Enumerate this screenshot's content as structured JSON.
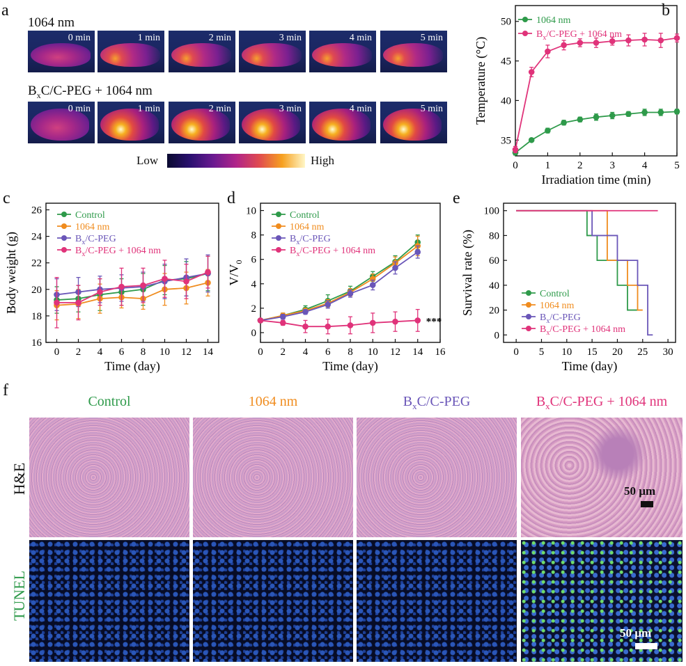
{
  "panel_labels": {
    "a": "a",
    "b": "b",
    "c": "c",
    "d": "d",
    "e": "e",
    "f": "f"
  },
  "colors": {
    "green": "#2e9a4a",
    "orange": "#f08c1e",
    "purple": "#6a56b8",
    "pink": "#e0337a"
  },
  "panel_a": {
    "row1_label": "1064 nm",
    "row2_label_prefix": "B",
    "row2_label_sub": "x",
    "row2_label_suffix": "C/C-PEG + 1064 nm",
    "times": [
      "0 min",
      "1 min",
      "2 min",
      "3 min",
      "4 min",
      "5 min"
    ],
    "colorbar_low": "Low",
    "colorbar_high": "High"
  },
  "panel_f": {
    "columns": [
      {
        "prefix": "Control",
        "sub": "",
        "suffix": ""
      },
      {
        "prefix": "1064 nm",
        "sub": "",
        "suffix": ""
      },
      {
        "prefix": "B",
        "sub": "x",
        "suffix": "C/C-PEG"
      },
      {
        "prefix": "B",
        "sub": "x",
        "suffix": "C/C-PEG + 1064 nm"
      }
    ],
    "row_he": "H&E",
    "row_tunel": "TUNEL",
    "scale_bar": "50 µm"
  },
  "chart_data": [
    {
      "panel": "b",
      "type": "line",
      "xlabel": "Irradiation time (min)",
      "ylabel": "Temperature (°C)",
      "xlim": [
        0,
        5
      ],
      "ylim": [
        33,
        52
      ],
      "xticks": [
        "0",
        "1",
        "2",
        "3",
        "4",
        "5"
      ],
      "yticks": [
        "35",
        "40",
        "45",
        "50"
      ],
      "x": [
        0,
        0.5,
        1,
        1.5,
        2,
        2.5,
        3,
        3.5,
        4,
        4.5,
        5
      ],
      "series": [
        {
          "name": "1064 nm",
          "color": "#2e9a4a",
          "values": [
            33.4,
            35.0,
            36.2,
            37.2,
            37.6,
            37.9,
            38.1,
            38.3,
            38.5,
            38.5,
            38.6
          ],
          "err": [
            0.3,
            0.2,
            0.3,
            0.3,
            0.3,
            0.4,
            0.4,
            0.3,
            0.4,
            0.4,
            0.3
          ]
        },
        {
          "name": "BxC/C-PEG + 1064 nm",
          "color": "#e0337a",
          "values": [
            33.8,
            43.6,
            46.2,
            47.0,
            47.3,
            47.3,
            47.5,
            47.6,
            47.7,
            47.6,
            47.9
          ],
          "err": [
            0.4,
            0.6,
            0.8,
            0.6,
            0.5,
            0.6,
            0.5,
            0.7,
            0.8,
            0.9,
            0.5
          ]
        }
      ],
      "legend_position": "top-left"
    },
    {
      "panel": "c",
      "type": "line",
      "xlabel": "Time (day)",
      "ylabel": "Body weight (g)",
      "xlim": [
        -1,
        15
      ],
      "ylim": [
        16,
        26.5
      ],
      "xticks": [
        "0",
        "2",
        "4",
        "6",
        "8",
        "10",
        "12",
        "14"
      ],
      "yticks": [
        "16",
        "18",
        "20",
        "22",
        "24",
        "26"
      ],
      "x": [
        0,
        2,
        4,
        6,
        8,
        10,
        12,
        14
      ],
      "series": [
        {
          "name": "Control",
          "color": "#2e9a4a",
          "values": [
            19.2,
            19.3,
            19.6,
            19.8,
            20.0,
            20.7,
            20.8,
            21.2
          ],
          "err": [
            1.0,
            1.0,
            1.2,
            1.0,
            1.2,
            1.1,
            1.3,
            1.3
          ]
        },
        {
          "name": "1064 nm",
          "color": "#f08c1e",
          "values": [
            18.8,
            18.9,
            19.3,
            19.4,
            19.3,
            20.0,
            20.1,
            20.5
          ],
          "err": [
            1.1,
            1.1,
            1.1,
            0.8,
            0.8,
            1.2,
            1.2,
            1.0
          ]
        },
        {
          "name": "BxC/C-PEG",
          "color": "#6a56b8",
          "values": [
            19.6,
            19.8,
            20.0,
            20.1,
            20.2,
            20.6,
            20.9,
            21.2
          ],
          "err": [
            1.2,
            1.1,
            1.0,
            1.0,
            1.1,
            1.3,
            1.4,
            1.4
          ]
        },
        {
          "name": "BxC/C-PEG + 1064 nm",
          "color": "#e0337a",
          "values": [
            19.0,
            19.0,
            19.8,
            20.2,
            20.3,
            20.8,
            20.6,
            21.3
          ],
          "err": [
            1.9,
            1.3,
            1.0,
            1.4,
            1.3,
            1.4,
            1.3,
            1.2
          ]
        }
      ],
      "legend_position": "top-left"
    },
    {
      "panel": "d",
      "type": "line",
      "xlabel": "Time (day)",
      "ylabel_main": "V/V",
      "ylabel_sub": "0",
      "xlim": [
        0,
        16
      ],
      "ylim": [
        -0.8,
        10.6
      ],
      "xticks": [
        "0",
        "2",
        "4",
        "6",
        "8",
        "10",
        "12",
        "14",
        "16"
      ],
      "yticks": [
        "0",
        "2",
        "4",
        "6",
        "8",
        "10"
      ],
      "x": [
        0,
        2,
        4,
        6,
        8,
        10,
        12,
        14
      ],
      "annotation": "***",
      "series": [
        {
          "name": "Control",
          "color": "#2e9a4a",
          "values": [
            1.0,
            1.4,
            1.9,
            2.6,
            3.4,
            4.6,
            5.8,
            7.4
          ],
          "err": [
            0.1,
            0.2,
            0.3,
            0.5,
            0.4,
            0.4,
            0.5,
            0.6
          ]
        },
        {
          "name": "1064 nm",
          "color": "#f08c1e",
          "values": [
            1.0,
            1.4,
            1.8,
            2.4,
            3.3,
            4.4,
            5.7,
            7.1
          ],
          "err": [
            0.1,
            0.2,
            0.2,
            0.3,
            0.3,
            0.4,
            0.5,
            0.8
          ]
        },
        {
          "name": "BxC/C-PEG",
          "color": "#6a56b8",
          "values": [
            1.0,
            1.3,
            1.7,
            2.3,
            3.2,
            3.9,
            5.3,
            6.6
          ],
          "err": [
            0.1,
            0.2,
            0.2,
            0.3,
            0.3,
            0.4,
            0.5,
            0.5
          ]
        },
        {
          "name": "BxC/C-PEG + 1064 nm",
          "color": "#e0337a",
          "values": [
            1.0,
            0.8,
            0.5,
            0.5,
            0.6,
            0.8,
            0.9,
            1.0
          ],
          "err": [
            0.1,
            0.2,
            0.5,
            0.6,
            0.7,
            0.8,
            0.8,
            0.9
          ]
        }
      ],
      "legend_position": "top-left"
    },
    {
      "panel": "e",
      "type": "line",
      "xlabel": "Time (day)",
      "ylabel": "Survival rate (%)",
      "xlim": [
        -2.5,
        31.5
      ],
      "ylim": [
        -6,
        106
      ],
      "xticks": [
        "0",
        "5",
        "10",
        "15",
        "20",
        "25",
        "30"
      ],
      "yticks": [
        "0",
        "20",
        "40",
        "60",
        "80",
        "100"
      ],
      "step": true,
      "series": [
        {
          "name": "Control",
          "color": "#2e9a4a",
          "x": [
            0,
            14,
            16,
            20,
            22,
            24
          ],
          "values": [
            100,
            80,
            60,
            40,
            20,
            20
          ]
        },
        {
          "name": "1064 nm",
          "color": "#f08c1e",
          "x": [
            0,
            16,
            18,
            22,
            24,
            25
          ],
          "values": [
            100,
            100,
            60,
            40,
            20,
            20
          ]
        },
        {
          "name": "BxC/C-PEG",
          "color": "#6a56b8",
          "x": [
            0,
            15,
            18,
            20,
            22,
            24,
            26,
            27
          ],
          "values": [
            100,
            80,
            80,
            60,
            60,
            40,
            0,
            0
          ]
        },
        {
          "name": "BxC/C-PEG + 1064 nm",
          "color": "#e0337a",
          "x": [
            0,
            28
          ],
          "values": [
            100,
            100
          ]
        }
      ],
      "legend_position": "bottom-left"
    }
  ]
}
